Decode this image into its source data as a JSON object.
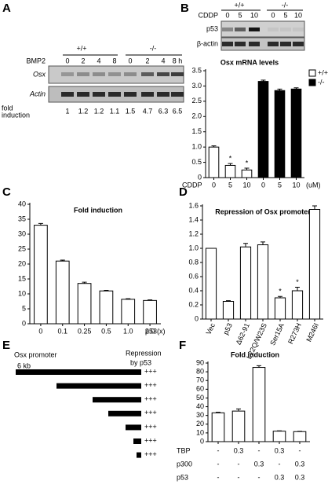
{
  "panel_labels": [
    "A",
    "B",
    "C",
    "D",
    "E",
    "F"
  ],
  "gel_a": {
    "genotypes": [
      "+/+",
      "-/-"
    ],
    "treatment": "BMP2",
    "lanes": [
      "0",
      "2",
      "4",
      "8",
      "0",
      "2",
      "4",
      "8 h"
    ],
    "rows": [
      "Osx",
      "Actin"
    ],
    "fold_label": [
      "fold",
      "induction"
    ],
    "fold_values": [
      1,
      1.2,
      1.2,
      1.1,
      1.5,
      4.7,
      6.3,
      6.5
    ]
  },
  "gel_b": {
    "genotypes": [
      "+/+",
      "-/-"
    ],
    "treatment": "CDDP",
    "lanes": [
      "0",
      "5",
      "10",
      "0",
      "5",
      "10"
    ],
    "rows": [
      "p53",
      "β-actin"
    ]
  },
  "diagram_e": {
    "label": "Osx promoter",
    "header": [
      "Repression",
      "by p53"
    ],
    "size": "6 kb",
    "rows": [
      "+++",
      "+++",
      "+++",
      "+++",
      "+++",
      "+++",
      "+++"
    ]
  },
  "chart_data": [
    {
      "type": "bar",
      "title": "Osx mRNA levels",
      "x_label": "CDDP",
      "x_unit": "(uM)",
      "categories": [
        "0",
        "5",
        "10",
        "0",
        "5",
        "10"
      ],
      "series": [
        {
          "name": "+/+",
          "color": "#ffffff",
          "values": [
            1.0,
            0.4,
            0.25,
            null,
            null,
            null
          ],
          "errors": [
            0.04,
            0.06,
            0.06,
            null,
            null,
            null
          ]
        },
        {
          "name": "-/-",
          "color": "#000000",
          "values": [
            null,
            null,
            null,
            3.15,
            2.85,
            2.9
          ],
          "errors": [
            null,
            null,
            null,
            0.04,
            0.05,
            0.04
          ]
        }
      ],
      "ylim": [
        0,
        3.5
      ],
      "yticks": [
        0,
        0.5,
        {
          "value": 1,
          "label": "1.0"
        },
        1.5,
        {
          "value": 2,
          "label": "2.0"
        },
        2.5,
        {
          "value": 3,
          "label": "3.0"
        },
        3.5
      ],
      "annotations": [
        {
          "text": "*",
          "series": 0,
          "index": 1
        },
        {
          "text": "*",
          "series": 0,
          "index": 2
        }
      ],
      "legend": "upper right"
    },
    {
      "type": "bar",
      "title": "Fold induction",
      "x_label": "p53(x)",
      "categories": [
        "0",
        "0.1",
        "0.25",
        "0.5",
        "1.0",
        "2.0"
      ],
      "series": [
        {
          "color": "#ffffff",
          "values": [
            33,
            21,
            13.5,
            11,
            8.2,
            7.8
          ],
          "errors": [
            0.6,
            0.3,
            0.4,
            0.2,
            0.2,
            0.2
          ]
        }
      ],
      "ylim": [
        0,
        40
      ],
      "yticks": [
        0,
        5,
        10,
        15,
        20,
        25,
        30,
        35,
        40
      ]
    },
    {
      "type": "bar",
      "title": "Repression of Osx promoter",
      "rotate_labels": true,
      "categories": [
        "Vec",
        "p53",
        "Δ62-91",
        "L22Q/W23S",
        "Ser15A",
        "R273H",
        "M246I"
      ],
      "series": [
        {
          "color": "#ffffff",
          "values": [
            1.0,
            0.25,
            1.02,
            1.05,
            0.3,
            0.4,
            1.55
          ],
          "errors": [
            0,
            0.01,
            0.05,
            0.04,
            0.02,
            0.05,
            0.05
          ]
        }
      ],
      "ylim": [
        0,
        1.6
      ],
      "yticks": [
        0,
        0.2,
        0.4,
        0.6,
        0.8,
        {
          "value": 1,
          "label": "1.0"
        },
        1.2,
        1.4,
        1.6
      ],
      "annotations": [
        {
          "text": "*",
          "series": 0,
          "index": 4
        },
        {
          "text": "*",
          "series": 0,
          "index": 5
        }
      ]
    },
    {
      "type": "bar",
      "title": "Fold induction",
      "series": [
        {
          "color": "#ffffff",
          "values": [
            33,
            35,
            85,
            12,
            11.5
          ],
          "errors": [
            0.6,
            2.5,
            2,
            0.4,
            0.3
          ]
        }
      ],
      "rows": [
        {
          "name": "TBP",
          "values": [
            "-",
            0.3,
            "-",
            0.3,
            "-"
          ]
        },
        {
          "name": "p300",
          "values": [
            "-",
            "-",
            0.3,
            "-",
            0.3
          ]
        },
        {
          "name": "p53",
          "values": [
            "-",
            "-",
            "-",
            0.3,
            0.3
          ]
        }
      ],
      "ylim": [
        0,
        90
      ],
      "yticks": [
        0,
        10,
        20,
        30,
        40,
        50,
        60,
        70,
        80,
        90
      ]
    }
  ]
}
